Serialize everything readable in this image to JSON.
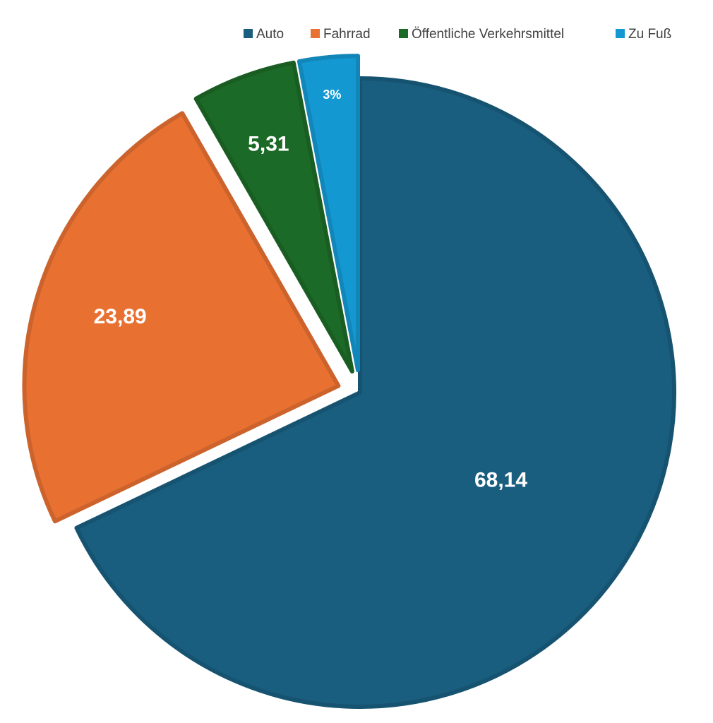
{
  "chart_data": {
    "type": "pie",
    "categories": [
      "Auto",
      "Fahrrad",
      "Öffentliche Verkehrsmittel",
      "Zu Fuß"
    ],
    "values": [
      68.14,
      23.89,
      5.31,
      3
    ],
    "value_labels": [
      "68,14",
      "23,89",
      "5,31",
      "3%"
    ],
    "colors": [
      "#195e7f",
      "#e87132",
      "#1c6a27",
      "#1498d1"
    ],
    "legend": "top"
  }
}
